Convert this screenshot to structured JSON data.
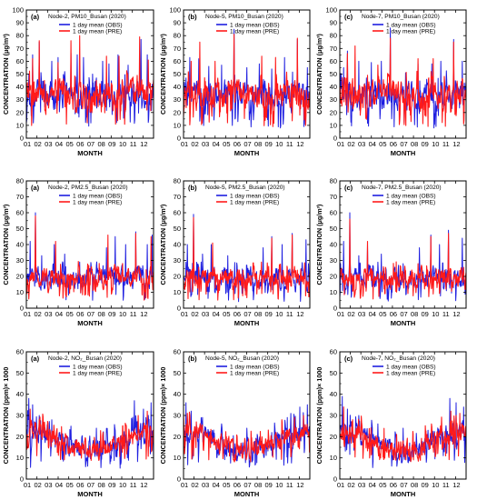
{
  "figure": {
    "colors": {
      "obs": "#1f1fe0",
      "pre": "#ff1a1a",
      "axis": "#000000"
    },
    "legend": {
      "obs_label": "1 day mean (OBS)",
      "pre_label": "1 day mean (PRE)"
    },
    "footnote": ""
  },
  "chart_data": [
    {
      "type": "line",
      "row": 0,
      "col": 0,
      "panel_label": "(a)",
      "title": "Node-2, PM10_Busan (2020)",
      "ylabel": "CONCENTRATION (μg/m³)",
      "xlabel": "MONTH",
      "ylim": [
        0,
        100
      ],
      "yticks": [
        0,
        10,
        20,
        30,
        40,
        50,
        60,
        70,
        80,
        90,
        100
      ],
      "xticks": [
        "01",
        "02",
        "03",
        "04",
        "05",
        "06",
        "07",
        "08",
        "09",
        "10",
        "11",
        "12"
      ],
      "series": [
        {
          "name": "1 day mean (OBS)",
          "peaks": [
            [
              0.02,
              50
            ],
            [
              0.05,
              65
            ],
            [
              0.1,
              75
            ],
            [
              0.15,
              42
            ],
            [
              0.2,
              60
            ],
            [
              0.25,
              63
            ],
            [
              0.3,
              52
            ],
            [
              0.35,
              66
            ],
            [
              0.4,
              65
            ],
            [
              0.45,
              63
            ],
            [
              0.52,
              50
            ],
            [
              0.55,
              47
            ],
            [
              0.6,
              60
            ],
            [
              0.65,
              58
            ],
            [
              0.72,
              65
            ],
            [
              0.8,
              57
            ],
            [
              0.9,
              77
            ],
            [
              0.95,
              65
            ],
            [
              0.99,
              42
            ]
          ],
          "mean": 34,
          "min": 8
        },
        {
          "name": "1 day mean (PRE)",
          "peaks": [
            [
              0.05,
              62
            ],
            [
              0.1,
              76
            ],
            [
              0.25,
              59
            ],
            [
              0.35,
              76
            ],
            [
              0.42,
              80
            ],
            [
              0.55,
              45
            ],
            [
              0.63,
              64
            ],
            [
              0.73,
              64
            ],
            [
              0.89,
              79
            ],
            [
              0.96,
              61
            ]
          ],
          "mean": 34,
          "min": 9
        }
      ]
    },
    {
      "type": "line",
      "row": 0,
      "col": 1,
      "panel_label": "(b)",
      "title": "Node-5, PM10_Busan (2020)",
      "ylabel": "CONCENTRATION (μg/m³)",
      "xlabel": "MONTH",
      "ylim": [
        0,
        100
      ],
      "yticks": [
        0,
        10,
        20,
        30,
        40,
        50,
        60,
        70,
        80,
        90,
        100
      ],
      "xticks": [
        "01",
        "02",
        "03",
        "04",
        "05",
        "06",
        "07",
        "08",
        "09",
        "10",
        "11",
        "12"
      ],
      "series": [
        {
          "name": "1 day mean (OBS)",
          "peaks": [
            [
              0.02,
              47
            ],
            [
              0.05,
              63
            ],
            [
              0.12,
              62
            ],
            [
              0.2,
              56
            ],
            [
              0.3,
              57
            ],
            [
              0.4,
              85
            ],
            [
              0.5,
              55
            ],
            [
              0.6,
              58
            ],
            [
              0.7,
              54
            ],
            [
              0.8,
              63
            ],
            [
              0.9,
              77
            ],
            [
              0.98,
              55
            ]
          ],
          "mean": 34,
          "min": 8
        },
        {
          "name": "1 day mean (PRE)",
          "peaks": [
            [
              0.06,
              60
            ],
            [
              0.13,
              75
            ],
            [
              0.25,
              60
            ],
            [
              0.4,
              81
            ],
            [
              0.62,
              64
            ],
            [
              0.73,
              63
            ],
            [
              0.9,
              78
            ]
          ],
          "mean": 34,
          "min": 9
        }
      ]
    },
    {
      "type": "line",
      "row": 0,
      "col": 2,
      "panel_label": "(c)",
      "title": "Node-7, PM10_Busan (2020)",
      "ylabel": "CONCENTRATION (μg/m³)",
      "xlabel": "MONTH",
      "ylim": [
        0,
        100
      ],
      "yticks": [
        0,
        10,
        20,
        30,
        40,
        50,
        60,
        70,
        80,
        90,
        100
      ],
      "xticks": [
        "01",
        "02",
        "03",
        "04",
        "05",
        "06",
        "07",
        "08",
        "09",
        "10",
        "11",
        "12"
      ],
      "series": [
        {
          "name": "1 day mean (OBS)",
          "peaks": [
            [
              0.03,
              55
            ],
            [
              0.06,
              68
            ],
            [
              0.15,
              60
            ],
            [
              0.25,
              59
            ],
            [
              0.33,
              60
            ],
            [
              0.4,
              86
            ],
            [
              0.52,
              51
            ],
            [
              0.62,
              58
            ],
            [
              0.73,
              58
            ],
            [
              0.8,
              60
            ],
            [
              0.9,
              77
            ],
            [
              0.97,
              60
            ]
          ],
          "mean": 34,
          "min": 8
        },
        {
          "name": "1 day mean (PRE)",
          "peaks": [
            [
              0.06,
              66
            ],
            [
              0.12,
              72
            ],
            [
              0.3,
              57
            ],
            [
              0.4,
              78
            ],
            [
              0.62,
              62
            ],
            [
              0.74,
              62
            ],
            [
              0.9,
              75
            ]
          ],
          "mean": 34,
          "min": 9
        }
      ]
    },
    {
      "type": "line",
      "row": 1,
      "col": 0,
      "panel_label": "(a)",
      "title": "Node-2, PM2.5_Busan (2020)",
      "ylabel": "CONCENTRATION (μg/m³)",
      "xlabel": "MONTH",
      "ylim": [
        0,
        80
      ],
      "yticks": [
        0,
        10,
        20,
        30,
        40,
        50,
        60,
        70,
        80
      ],
      "xticks": [
        "01",
        "02",
        "03",
        "04",
        "05",
        "06",
        "07",
        "08",
        "09",
        "10",
        "11",
        "12"
      ],
      "series": [
        {
          "name": "1 day mean (OBS)",
          "peaks": [
            [
              0.03,
              42
            ],
            [
              0.07,
              60
            ],
            [
              0.12,
              33
            ],
            [
              0.22,
              40
            ],
            [
              0.3,
              34
            ],
            [
              0.42,
              29
            ],
            [
              0.55,
              27
            ],
            [
              0.63,
              38
            ],
            [
              0.7,
              45
            ],
            [
              0.78,
              40
            ],
            [
              0.86,
              48
            ],
            [
              0.95,
              40
            ],
            [
              0.99,
              46
            ]
          ],
          "mean": 19,
          "min": 4
        },
        {
          "name": "1 day mean (PRE)",
          "peaks": [
            [
              0.07,
              58
            ],
            [
              0.23,
              42
            ],
            [
              0.64,
              46
            ],
            [
              0.86,
              47
            ],
            [
              0.98,
              45
            ]
          ],
          "mean": 19,
          "min": 5
        }
      ]
    },
    {
      "type": "line",
      "row": 1,
      "col": 1,
      "panel_label": "(b)",
      "title": "Node-5, PM2.5_Busan (2020)",
      "ylabel": "CONCENTRATION (μg/m³)",
      "xlabel": "MONTH",
      "ylim": [
        0,
        80
      ],
      "yticks": [
        0,
        10,
        20,
        30,
        40,
        50,
        60,
        70,
        80
      ],
      "xticks": [
        "01",
        "02",
        "03",
        "04",
        "05",
        "06",
        "07",
        "08",
        "09",
        "10",
        "11",
        "12"
      ],
      "series": [
        {
          "name": "1 day mean (OBS)",
          "peaks": [
            [
              0.03,
              40
            ],
            [
              0.08,
              59
            ],
            [
              0.15,
              34
            ],
            [
              0.22,
              40
            ],
            [
              0.35,
              33
            ],
            [
              0.5,
              27
            ],
            [
              0.63,
              38
            ],
            [
              0.7,
              45
            ],
            [
              0.78,
              40
            ],
            [
              0.86,
              47
            ],
            [
              0.97,
              43
            ]
          ],
          "mean": 19,
          "min": 4
        },
        {
          "name": "1 day mean (PRE)",
          "peaks": [
            [
              0.08,
              57
            ],
            [
              0.23,
              41
            ],
            [
              0.7,
              44
            ],
            [
              0.86,
              46
            ]
          ],
          "mean": 19,
          "min": 5
        }
      ]
    },
    {
      "type": "line",
      "row": 1,
      "col": 2,
      "panel_label": "(c)",
      "title": "Node-7, PM2.5_Busan (2020)",
      "ylabel": "CONCENTRATION (μg/m³)",
      "xlabel": "MONTH",
      "ylim": [
        0,
        80
      ],
      "yticks": [
        0,
        10,
        20,
        30,
        40,
        50,
        60,
        70,
        80
      ],
      "xticks": [
        "01",
        "02",
        "03",
        "04",
        "05",
        "06",
        "07",
        "08",
        "09",
        "10",
        "11",
        "12"
      ],
      "series": [
        {
          "name": "1 day mean (OBS)",
          "peaks": [
            [
              0.03,
              42
            ],
            [
              0.08,
              60
            ],
            [
              0.15,
              33
            ],
            [
              0.22,
              40
            ],
            [
              0.33,
              34
            ],
            [
              0.5,
              28
            ],
            [
              0.63,
              38
            ],
            [
              0.72,
              46
            ],
            [
              0.79,
              40
            ],
            [
              0.86,
              49
            ],
            [
              0.97,
              44
            ]
          ],
          "mean": 19,
          "min": 4
        },
        {
          "name": "1 day mean (PRE)",
          "peaks": [
            [
              0.08,
              56
            ],
            [
              0.22,
              42
            ],
            [
              0.72,
              45
            ],
            [
              0.86,
              47
            ]
          ],
          "mean": 19,
          "min": 5
        }
      ]
    },
    {
      "type": "line",
      "row": 2,
      "col": 0,
      "panel_label": "(a)",
      "title": "Node-2, NO₂_Busan (2020)",
      "ylabel": "CONCENTRATION (ppm)× 1000",
      "xlabel": "MONTH",
      "ylim": [
        0,
        60
      ],
      "yticks": [
        0,
        10,
        20,
        30,
        40,
        50,
        60
      ],
      "xticks": [
        "01",
        "02",
        "03",
        "04",
        "05",
        "06",
        "07",
        "08",
        "09",
        "10",
        "11",
        "12"
      ],
      "series": [
        {
          "name": "1 day mean (OBS)",
          "peaks": [
            [
              0.02,
              38
            ],
            [
              0.05,
              35
            ],
            [
              0.1,
              30
            ],
            [
              0.2,
              28
            ],
            [
              0.35,
              25
            ],
            [
              0.55,
              24
            ],
            [
              0.7,
              23
            ],
            [
              0.85,
              37
            ],
            [
              0.92,
              33
            ],
            [
              0.98,
              36
            ]
          ],
          "mean": 18,
          "min": 5
        },
        {
          "name": "1 day mean (PRE)",
          "peaks": [
            [
              0.03,
              33
            ],
            [
              0.1,
              28
            ],
            [
              0.88,
              30
            ],
            [
              0.95,
              32
            ]
          ],
          "mean": 18,
          "min": 9
        }
      ]
    },
    {
      "type": "line",
      "row": 2,
      "col": 1,
      "panel_label": "(b)",
      "title": "Node-5, NO₂_Busan (2020)",
      "ylabel": "CONCENTRATION (ppm)× 1000",
      "xlabel": "MONTH",
      "ylim": [
        0,
        60
      ],
      "yticks": [
        0,
        10,
        20,
        30,
        40,
        50,
        60
      ],
      "xticks": [
        "01",
        "02",
        "03",
        "04",
        "05",
        "06",
        "07",
        "08",
        "09",
        "10",
        "11",
        "12"
      ],
      "series": [
        {
          "name": "1 day mean (OBS)",
          "peaks": [
            [
              0.02,
              36
            ],
            [
              0.06,
              32
            ],
            [
              0.15,
              29
            ],
            [
              0.3,
              26
            ],
            [
              0.5,
              24
            ],
            [
              0.7,
              22
            ],
            [
              0.85,
              31
            ],
            [
              0.92,
              34
            ],
            [
              0.98,
              35
            ]
          ],
          "mean": 18,
          "min": 5
        },
        {
          "name": "1 day mean (PRE)",
          "peaks": [
            [
              0.03,
              31
            ],
            [
              0.1,
              27
            ],
            [
              0.88,
              29
            ],
            [
              0.95,
              30
            ]
          ],
          "mean": 18,
          "min": 9
        }
      ]
    },
    {
      "type": "line",
      "row": 2,
      "col": 2,
      "panel_label": "(c)",
      "title": "Node-7, NO₂_Busan (2020)",
      "ylabel": "CONCENTRATION (ppm)× 1000",
      "xlabel": "MONTH",
      "ylim": [
        0,
        60
      ],
      "yticks": [
        0,
        10,
        20,
        30,
        40,
        50,
        60
      ],
      "xticks": [
        "01",
        "02",
        "03",
        "04",
        "05",
        "06",
        "07",
        "08",
        "09",
        "10",
        "11",
        "12"
      ],
      "series": [
        {
          "name": "1 day mean (OBS)",
          "peaks": [
            [
              0.02,
              39
            ],
            [
              0.06,
              33
            ],
            [
              0.15,
              30
            ],
            [
              0.3,
              26
            ],
            [
              0.5,
              24
            ],
            [
              0.7,
              23
            ],
            [
              0.87,
              38
            ],
            [
              0.92,
              36
            ],
            [
              0.98,
              34
            ]
          ],
          "mean": 18,
          "min": 5
        },
        {
          "name": "1 day mean (PRE)",
          "peaks": [
            [
              0.03,
              34
            ],
            [
              0.1,
              28
            ],
            [
              0.88,
              32
            ],
            [
              0.95,
              31
            ]
          ],
          "mean": 18,
          "min": 9
        }
      ]
    }
  ]
}
